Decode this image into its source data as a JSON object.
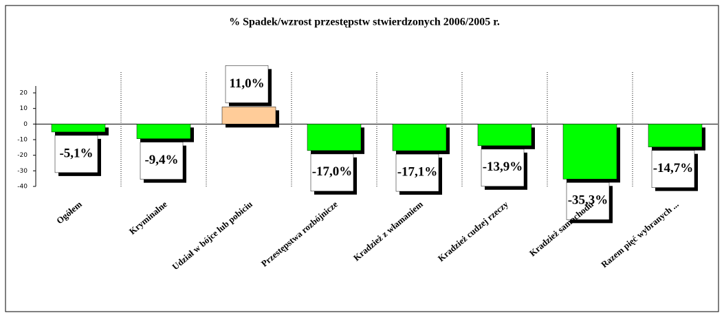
{
  "chart_data": {
    "type": "bar",
    "title": "% Spadek/wzrost  przestępstw stwierdzonych 2006/2005 r.",
    "categories": [
      "Ogółem",
      "Kryminalne",
      "Udział w bójce lub pobiciu",
      "Przestępstwa rozbójnicze",
      "Kradzież z włamaniem",
      "Kradzież cudzej rzeczy",
      "Kradzież samochodu",
      "Razem pięć wybranych ..."
    ],
    "values": [
      -5.1,
      -9.4,
      11.0,
      -17.0,
      -17.1,
      -13.9,
      -35.3,
      -14.7
    ],
    "value_labels": [
      "-5,1%",
      "-9,4%",
      "11,0%",
      "-17,0%",
      "-17,1%",
      "-13,9%",
      "-35,3%",
      "-14,7%"
    ],
    "colors": [
      "#00ff00",
      "#00ff00",
      "#ffcc99",
      "#00ff00",
      "#00ff00",
      "#00ff00",
      "#00ff00",
      "#00ff00"
    ],
    "ylim": [
      -40,
      20
    ],
    "yticks": [
      -40,
      -30,
      -20,
      -10,
      0,
      10,
      20
    ]
  }
}
